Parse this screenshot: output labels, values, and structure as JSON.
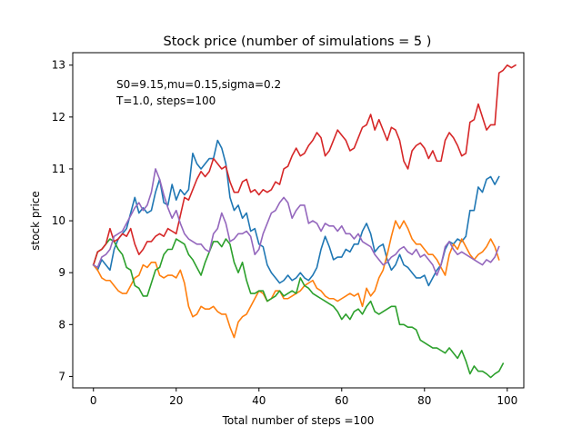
{
  "chart_data": {
    "type": "line",
    "title": "Stock price (number of simulations = 5 )",
    "xlabel": "Total number of steps =100",
    "ylabel": "stock price",
    "xlim": [
      -5,
      104
    ],
    "ylim": [
      6.78,
      13.24
    ],
    "xticks": [
      0,
      20,
      40,
      60,
      80,
      100
    ],
    "yticks": [
      7,
      8,
      9,
      10,
      11,
      12,
      13
    ],
    "grid": false,
    "legend": "none",
    "annotations": [
      "S0=9.15,mu=0.15,sigma=0.2",
      "T=1.0, steps=100"
    ],
    "series": [
      {
        "color": "#1f77b4",
        "values": [
          9.15,
          9.05,
          9.25,
          9.15,
          9.05,
          9.45,
          9.65,
          9.75,
          9.85,
          10.15,
          10.45,
          10.15,
          10.25,
          10.15,
          10.2,
          10.55,
          10.8,
          10.35,
          10.3,
          10.7,
          10.4,
          10.6,
          10.5,
          10.6,
          11.3,
          11.1,
          11.0,
          11.1,
          11.2,
          11.2,
          11.55,
          11.4,
          11.1,
          10.45,
          10.2,
          10.3,
          10.05,
          10.15,
          9.8,
          9.85,
          9.55,
          9.5,
          9.15,
          9.0,
          8.9,
          8.8,
          8.85,
          8.95,
          8.85,
          8.9,
          9.0,
          8.9,
          8.85,
          8.95,
          9.1,
          9.45,
          9.7,
          9.5,
          9.25,
          9.3,
          9.3,
          9.45,
          9.4,
          9.55,
          9.55,
          9.8,
          9.95,
          9.75,
          9.4,
          9.5,
          9.55,
          9.25,
          9.05,
          9.15,
          9.35,
          9.15,
          9.1,
          9.0,
          8.9,
          8.9,
          8.95,
          8.75,
          8.9,
          9.05,
          9.15,
          9.45,
          9.6,
          9.55,
          9.65,
          9.6,
          9.7,
          10.2,
          10.2,
          10.65,
          10.55,
          10.8,
          10.85,
          10.7,
          10.85
        ]
      },
      {
        "color": "#ff7f0e",
        "values": [
          9.15,
          9.05,
          8.9,
          8.85,
          8.85,
          8.75,
          8.65,
          8.6,
          8.6,
          8.75,
          8.9,
          8.95,
          9.15,
          9.1,
          9.2,
          9.2,
          8.95,
          8.9,
          8.95,
          8.95,
          8.9,
          9.05,
          8.8,
          8.35,
          8.15,
          8.2,
          8.35,
          8.3,
          8.3,
          8.35,
          8.25,
          8.2,
          8.2,
          7.95,
          7.75,
          8.05,
          8.15,
          8.2,
          8.35,
          8.5,
          8.65,
          8.6,
          8.45,
          8.5,
          8.65,
          8.65,
          8.5,
          8.5,
          8.55,
          8.6,
          8.65,
          8.75,
          8.8,
          8.85,
          8.7,
          8.65,
          8.55,
          8.5,
          8.5,
          8.45,
          8.5,
          8.55,
          8.6,
          8.55,
          8.6,
          8.35,
          8.7,
          8.55,
          8.65,
          8.9,
          9.05,
          9.35,
          9.7,
          10.0,
          9.85,
          10.0,
          9.85,
          9.65,
          9.55,
          9.55,
          9.45,
          9.35,
          9.35,
          9.25,
          9.1,
          8.95,
          9.35,
          9.55,
          9.45,
          9.65,
          9.5,
          9.35,
          9.25,
          9.35,
          9.4,
          9.5,
          9.65,
          9.5,
          9.25
        ]
      },
      {
        "color": "#2ca02c",
        "values": [
          9.15,
          9.4,
          9.45,
          9.55,
          9.65,
          9.6,
          9.45,
          9.35,
          9.1,
          9.05,
          8.75,
          8.7,
          8.55,
          8.55,
          8.8,
          9.05,
          9.1,
          9.35,
          9.45,
          9.45,
          9.65,
          9.6,
          9.55,
          9.35,
          9.25,
          9.1,
          8.95,
          9.2,
          9.4,
          9.6,
          9.6,
          9.5,
          9.65,
          9.55,
          9.2,
          9.0,
          9.2,
          8.85,
          8.6,
          8.6,
          8.65,
          8.65,
          8.45,
          8.5,
          8.55,
          8.65,
          8.55,
          8.6,
          8.65,
          8.6,
          8.9,
          8.75,
          8.7,
          8.6,
          8.55,
          8.5,
          8.45,
          8.4,
          8.35,
          8.25,
          8.1,
          8.2,
          8.1,
          8.25,
          8.3,
          8.2,
          8.35,
          8.45,
          8.25,
          8.2,
          8.25,
          8.3,
          8.35,
          8.35,
          8.0,
          8.0,
          7.95,
          7.95,
          7.9,
          7.7,
          7.65,
          7.6,
          7.55,
          7.55,
          7.5,
          7.45,
          7.55,
          7.45,
          7.35,
          7.5,
          7.3,
          7.05,
          7.2,
          7.1,
          7.1,
          7.05,
          6.98,
          7.05,
          7.1,
          7.25
        ]
      },
      {
        "color": "#d62728",
        "values": [
          9.15,
          9.4,
          9.45,
          9.55,
          9.85,
          9.6,
          9.65,
          9.75,
          9.7,
          9.85,
          9.55,
          9.35,
          9.45,
          9.6,
          9.6,
          9.7,
          9.75,
          9.7,
          9.85,
          9.8,
          9.75,
          10.1,
          10.45,
          10.4,
          10.6,
          10.8,
          10.95,
          10.85,
          10.95,
          11.2,
          11.1,
          11.0,
          11.05,
          10.75,
          10.55,
          10.55,
          10.75,
          10.8,
          10.55,
          10.6,
          10.5,
          10.6,
          10.55,
          10.6,
          10.75,
          10.7,
          11.0,
          11.05,
          11.25,
          11.4,
          11.25,
          11.3,
          11.45,
          11.55,
          11.7,
          11.6,
          11.25,
          11.35,
          11.55,
          11.75,
          11.65,
          11.55,
          11.35,
          11.4,
          11.6,
          11.8,
          11.85,
          12.05,
          11.75,
          11.95,
          11.75,
          11.55,
          11.8,
          11.75,
          11.55,
          11.15,
          11.0,
          11.35,
          11.45,
          11.5,
          11.4,
          11.2,
          11.35,
          11.15,
          11.15,
          11.55,
          11.7,
          11.6,
          11.45,
          11.25,
          11.3,
          11.9,
          11.95,
          12.25,
          12.0,
          11.75,
          11.85,
          11.85,
          12.85,
          12.9,
          13.0,
          12.95,
          13.0
        ]
      },
      {
        "color": "#9467bd",
        "values": [
          9.15,
          9.1,
          9.3,
          9.35,
          9.45,
          9.7,
          9.75,
          9.8,
          9.95,
          10.1,
          10.25,
          10.35,
          10.2,
          10.3,
          10.55,
          11.0,
          10.8,
          10.5,
          10.25,
          10.05,
          10.2,
          9.95,
          9.75,
          9.65,
          9.6,
          9.55,
          9.55,
          9.45,
          9.4,
          9.75,
          9.85,
          10.15,
          9.95,
          9.6,
          9.65,
          9.75,
          9.75,
          9.8,
          9.7,
          9.35,
          9.45,
          9.75,
          9.95,
          10.15,
          10.2,
          10.35,
          10.45,
          10.35,
          10.05,
          10.2,
          10.3,
          10.3,
          9.95,
          10.0,
          9.95,
          9.8,
          9.95,
          9.9,
          9.9,
          9.8,
          9.9,
          9.75,
          9.75,
          9.65,
          9.75,
          9.6,
          9.55,
          9.5,
          9.35,
          9.25,
          9.15,
          9.2,
          9.3,
          9.35,
          9.45,
          9.5,
          9.4,
          9.35,
          9.45,
          9.3,
          9.35,
          9.25,
          9.15,
          8.95,
          9.15,
          9.5,
          9.6,
          9.45,
          9.35,
          9.4,
          9.35,
          9.3,
          9.25,
          9.2,
          9.15,
          9.25,
          9.2,
          9.3,
          9.5
        ]
      }
    ]
  }
}
